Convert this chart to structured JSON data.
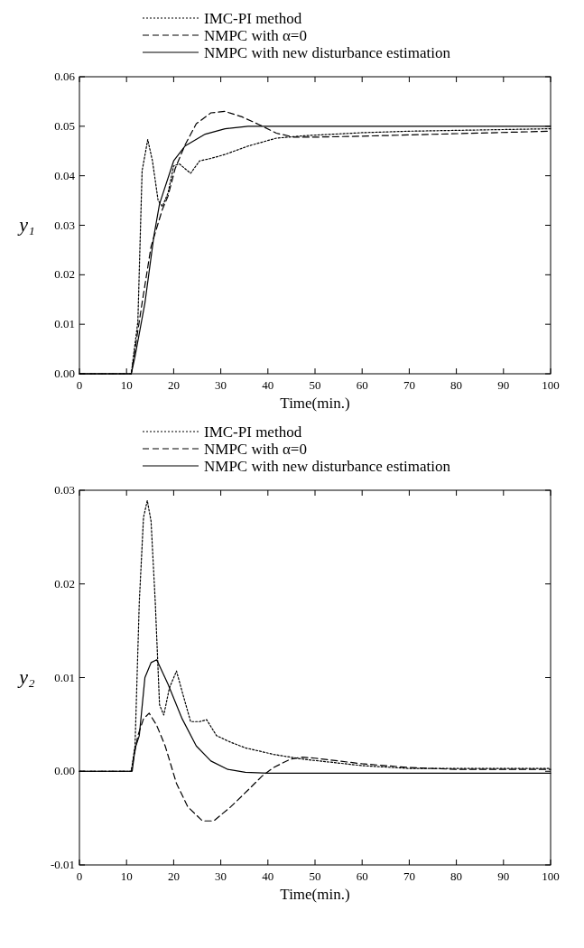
{
  "chart_data": [
    {
      "type": "line",
      "xlabel": "Time(min.)",
      "ylabel": "y₁",
      "xlim": [
        0,
        100
      ],
      "ylim": [
        0,
        0.06
      ],
      "xticks": [
        0,
        10,
        20,
        30,
        40,
        50,
        60,
        70,
        80,
        90,
        100
      ],
      "yticks": [
        {
          "value": 0,
          "label": "0.00"
        },
        0.01,
        0.02,
        0.03,
        0.04,
        0.05,
        0.06
      ],
      "legend": "top",
      "grid": false,
      "series": [
        {
          "name": "IMC-PI method",
          "color": "#000000",
          "line_style": "dotted",
          "x": [
            0,
            11,
            12.4,
            13.3,
            14.5,
            15.5,
            16.7,
            17.6,
            18.8,
            20,
            21.2,
            23.6,
            25.5,
            27.9,
            30.9,
            35.8,
            41.8,
            47.9,
            60,
            70,
            100
          ],
          "values": [
            0,
            0,
            0.0105,
            0.041,
            0.0473,
            0.043,
            0.035,
            0.0338,
            0.0365,
            0.042,
            0.0424,
            0.0405,
            0.043,
            0.0435,
            0.0443,
            0.046,
            0.0476,
            0.0481,
            0.0487,
            0.049,
            0.0495
          ]
        },
        {
          "name": "NMPC with α=0",
          "color": "#000000",
          "line_style": "dashed",
          "x": [
            0,
            11,
            13.3,
            15.2,
            17.6,
            18.8,
            20.3,
            22.4,
            24.8,
            27.9,
            30.9,
            34.5,
            38.2,
            41.8,
            45.5,
            50,
            60,
            100
          ],
          "values": [
            0,
            0,
            0.0143,
            0.0257,
            0.0332,
            0.0359,
            0.0414,
            0.0462,
            0.0505,
            0.0527,
            0.053,
            0.0519,
            0.0503,
            0.0486,
            0.0478,
            0.0478,
            0.048,
            0.049
          ]
        },
        {
          "name": "NMPC with new disturbance estimation",
          "color": "#000000",
          "line_style": "solid",
          "x": [
            0,
            11,
            11.8,
            13.9,
            15.8,
            17,
            20,
            22.4,
            26.7,
            30.9,
            35.8,
            40,
            100
          ],
          "values": [
            0,
            0,
            0.0035,
            0.0143,
            0.0278,
            0.0343,
            0.043,
            0.046,
            0.0484,
            0.0495,
            0.05,
            0.05,
            0.05
          ]
        }
      ]
    },
    {
      "type": "line",
      "xlabel": "Time(min.)",
      "ylabel": "y₂",
      "xlim": [
        0,
        100
      ],
      "ylim": [
        -0.01,
        0.03
      ],
      "xticks": [
        0,
        10,
        20,
        30,
        40,
        50,
        60,
        70,
        80,
        90,
        100
      ],
      "yticks": [
        -0.01,
        {
          "value": 0,
          "label": "0.00"
        },
        0.01,
        0.02,
        0.03
      ],
      "legend": "top",
      "grid": false,
      "series": [
        {
          "name": "IMC-PI method",
          "color": "#000000",
          "line_style": "dotted",
          "x": [
            0,
            11,
            11.8,
            12.7,
            13.6,
            14.4,
            15.2,
            16.1,
            17,
            17.9,
            19.1,
            20.6,
            21.8,
            23.6,
            25.5,
            27,
            29.1,
            32.1,
            35.2,
            41.2,
            47.3,
            60,
            70,
            100
          ],
          "values": [
            0,
            0,
            0.0027,
            0.018,
            0.0271,
            0.0289,
            0.0267,
            0.018,
            0.0071,
            0.006,
            0.0089,
            0.0107,
            0.0085,
            0.0053,
            0.0053,
            0.0055,
            0.0038,
            0.0031,
            0.0025,
            0.0018,
            0.0013,
            0.0006,
            0.0003,
            0.0003
          ]
        },
        {
          "name": "NMPC with α=0",
          "color": "#000000",
          "line_style": "dashed",
          "x": [
            0,
            11,
            12.4,
            13.6,
            14.8,
            16.4,
            18.2,
            20.6,
            23,
            26.1,
            28.5,
            32.1,
            35.8,
            38.8,
            41.2,
            44.8,
            47.3,
            50,
            60,
            70,
            80,
            100
          ],
          "values": [
            0,
            0,
            0.0038,
            0.0056,
            0.0062,
            0.0049,
            0.0027,
            -0.0013,
            -0.0038,
            -0.0053,
            -0.0053,
            -0.0038,
            -0.002,
            -0.0005,
            0.0004,
            0.0013,
            0.0015,
            0.0014,
            0.0008,
            0.0004,
            0.0002,
            0.0002
          ]
        },
        {
          "name": "NMPC with new disturbance estimation",
          "color": "#000000",
          "line_style": "solid",
          "x": [
            0,
            11.2,
            11.8,
            12.7,
            13.9,
            15.2,
            16.4,
            18.8,
            21.8,
            24.8,
            27.9,
            31.5,
            35.2,
            40,
            100
          ],
          "values": [
            0,
            0,
            0.0024,
            0.0038,
            0.01,
            0.0116,
            0.0119,
            0.0093,
            0.0056,
            0.0027,
            0.0011,
            0.0002,
            -0.0001,
            -0.0002,
            -0.0002
          ]
        }
      ]
    }
  ]
}
